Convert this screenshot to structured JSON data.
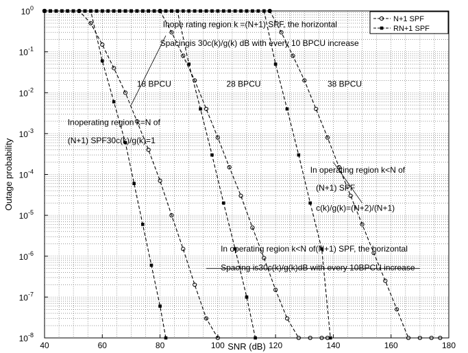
{
  "chart_data": {
    "type": "line",
    "xlabel": "SNR (dB)",
    "ylabel": "Outage probability",
    "xlim": [
      40,
      180
    ],
    "ylim": [
      1e-08,
      1
    ],
    "yscale": "log",
    "grid": true,
    "legend_position": "top-right",
    "x_ticks": [
      40,
      60,
      80,
      100,
      120,
      140,
      160,
      180
    ],
    "y_ticks": [
      {
        "value": 1,
        "mantissa": "10",
        "exponent": "0"
      },
      {
        "value": 0.1,
        "mantissa": "10",
        "exponent": "-1"
      },
      {
        "value": 0.01,
        "mantissa": "10",
        "exponent": "-2"
      },
      {
        "value": 0.001,
        "mantissa": "10",
        "exponent": "-3"
      },
      {
        "value": 0.0001,
        "mantissa": "10",
        "exponent": "-4"
      },
      {
        "value": 1e-05,
        "mantissa": "10",
        "exponent": "-5"
      },
      {
        "value": 1e-06,
        "mantissa": "10",
        "exponent": "-6"
      },
      {
        "value": 1e-07,
        "mantissa": "10",
        "exponent": "-7"
      },
      {
        "value": 1e-08,
        "mantissa": "10",
        "exponent": "-8"
      }
    ],
    "legend": [
      {
        "label": "N+1 SPF",
        "marker": "circle"
      },
      {
        "label": "RN+1 SPF",
        "marker": "square"
      }
    ],
    "series": [
      {
        "name": "N+1 SPF",
        "group": "18 BPCU",
        "marker": "circle",
        "x": [
          40,
          52,
          56,
          60,
          64,
          68,
          72,
          76,
          80,
          84,
          88,
          92,
          96,
          100
        ],
        "y": [
          1,
          1,
          0.5,
          0.15,
          0.04,
          0.01,
          0.002,
          0.0004,
          7e-05,
          1e-05,
          1.5e-06,
          2e-07,
          3e-08,
          1e-08
        ]
      },
      {
        "name": "RN+1 SPF",
        "group": "18 BPCU",
        "marker": "square",
        "x": [
          40,
          56,
          60,
          64,
          68,
          71,
          74,
          77,
          80,
          82
        ],
        "y": [
          1,
          1,
          0.06,
          0.006,
          0.0006,
          6e-05,
          6e-06,
          6e-07,
          6e-08,
          1e-08
        ]
      },
      {
        "name": "N+1 SPF",
        "group": "28 BPCU",
        "marker": "circle",
        "x": [
          40,
          80,
          84,
          88,
          92,
          96,
          100,
          104,
          108,
          112,
          116,
          120,
          124,
          128,
          132,
          136,
          138
        ],
        "y": [
          1,
          1,
          0.3,
          0.08,
          0.02,
          0.004,
          0.0008,
          0.00015,
          3e-05,
          5e-06,
          9e-07,
          1.5e-07,
          3e-08,
          1e-08,
          1e-08,
          1e-08,
          1e-08
        ]
      },
      {
        "name": "RN+1 SPF",
        "group": "28 BPCU",
        "marker": "square",
        "x": [
          40,
          86,
          90,
          94,
          98,
          102,
          106,
          110,
          113
        ],
        "y": [
          1,
          1,
          0.05,
          0.004,
          0.0003,
          2e-05,
          1.5e-06,
          1e-07,
          1e-08
        ]
      },
      {
        "name": "N+1 SPF",
        "group": "38 BPCU",
        "marker": "circle",
        "x": [
          40,
          118,
          122,
          126,
          130,
          134,
          138,
          142,
          146,
          150,
          154,
          158,
          162,
          166,
          170,
          174,
          177
        ],
        "y": [
          1,
          1,
          0.3,
          0.08,
          0.02,
          0.004,
          0.0008,
          0.00015,
          3e-05,
          6e-06,
          1.2e-06,
          2.5e-07,
          5e-08,
          1e-08,
          1e-08,
          1e-08,
          1e-08
        ]
      },
      {
        "name": "RN+1 SPF",
        "group": "38 BPCU",
        "marker": "square",
        "x": [
          40,
          116,
          120,
          124,
          128,
          132,
          136,
          139
        ],
        "y": [
          1,
          1,
          0.05,
          0.004,
          0.0003,
          2e-05,
          1.5e-06,
          1e-08
        ]
      }
    ],
    "annotations": [
      {
        "text": "Inope rating region k =(N+1) SPF,  the horizontal",
        "x": 81,
        "y": 0.4
      },
      {
        "text": "Spacingis 30c(k)/g(k) dB with every 10 BPCU increase",
        "x": 80,
        "y": 0.14
      },
      {
        "text": "18 BPCU",
        "x": 72,
        "y": 0.014
      },
      {
        "text": "28 BPCU",
        "x": 103,
        "y": 0.014
      },
      {
        "text": "38 BPCU",
        "x": 138,
        "y": 0.014
      },
      {
        "text": "Inoperating region k=N of",
        "x": 48,
        "y": 0.0016
      },
      {
        "text": "(N+1) SPF30c(k)/g(k)=1",
        "x": 48,
        "y": 0.00058
      },
      {
        "text": "In operating region k<N of",
        "x": 132,
        "y": 0.00011
      },
      {
        "text": "(N+1)  SPF",
        "x": 134,
        "y": 4e-05
      },
      {
        "text": "c(k)/g(k)=(N+2)/(N+1)",
        "x": 134,
        "y": 1.3e-05
      },
      {
        "text": "In operating region k<N of(N+1) SPF,  the horizontal",
        "x": 101,
        "y": 1.3e-06
      },
      {
        "text": "Spacing  is30c(k)/g(k)dB with every 10BPCU increase",
        "x": 101,
        "y": 4.5e-07
      }
    ]
  }
}
